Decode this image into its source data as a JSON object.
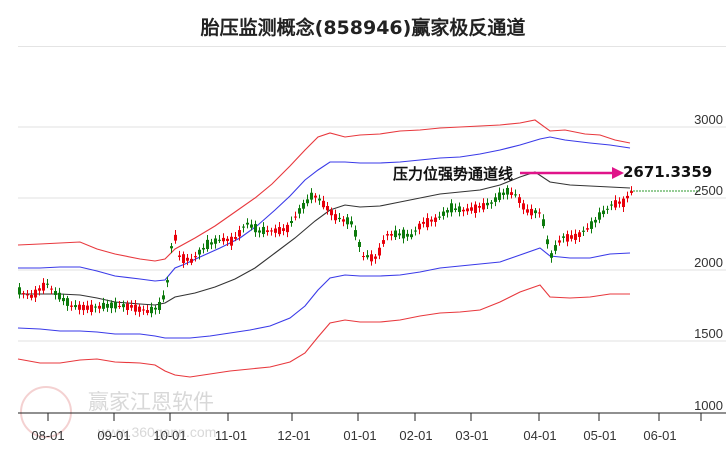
{
  "title": "胎压监测概念(858946)赢家极反通道",
  "annotation": {
    "label": "压力位强势通道线",
    "value": "2671.3359"
  },
  "watermark": {
    "brand": "赢家江恩软件",
    "url": "www.360gann.com"
  },
  "colors": {
    "up": "#e8000b",
    "down": "#0c7a0c",
    "outer_band": "#e8383d",
    "inner_band": "#3535e8",
    "mid_line": "#333333",
    "arrow": "#e0148a",
    "grid": "#dddddd",
    "dotted_level": "#2e9a2e"
  },
  "chart_data": {
    "type": "candlestick",
    "title": "胎压监测概念(858946)赢家极反通道",
    "xlabel": "",
    "ylabel": "",
    "x_ticks": [
      "08-01",
      "09-01",
      "10-01",
      "11-01",
      "12-01",
      "01-01",
      "02-01",
      "03-01",
      "04-01",
      "05-01",
      "06-01"
    ],
    "y_ticks": [
      1000,
      1500,
      2000,
      2500,
      3000
    ],
    "ylim": [
      1000,
      3000
    ],
    "grid": "horizontal",
    "annotations": [
      {
        "text": "压力位强势通道线",
        "value": 2671.3359,
        "type": "arrow"
      }
    ],
    "series": [
      {
        "name": "outer_upper",
        "color": "#e8383d",
        "approx_values": [
          2330,
          2340,
          2330,
          2250,
          2170,
          2180,
          2400,
          2560,
          2700,
          2820,
          2900,
          2850,
          2870,
          2950,
          3000,
          2990,
          2890
        ]
      },
      {
        "name": "inner_upper",
        "color": "#3535e8",
        "approx_values": [
          2040,
          2030,
          2000,
          1890,
          1880,
          2030,
          2200,
          2400,
          2580,
          2570,
          2580,
          2630,
          2700,
          2730,
          2680,
          2660
        ]
      },
      {
        "name": "middle",
        "color": "#333333",
        "approx_values": [
          1800,
          1800,
          1790,
          1740,
          1720,
          1780,
          1970,
          2120,
          2280,
          2320,
          2320,
          2360,
          2410,
          2460,
          2440,
          2420
        ]
      },
      {
        "name": "inner_lower",
        "color": "#3535e8",
        "approx_values": [
          1600,
          1590,
          1580,
          1530,
          1500,
          1560,
          1740,
          1890,
          1960,
          1950,
          1990,
          2000,
          2060,
          2140,
          2080,
          2100
        ]
      },
      {
        "name": "outer_lower",
        "color": "#e8383d",
        "approx_values": [
          1300,
          1280,
          1300,
          1270,
          1220,
          1250,
          1440,
          1650,
          1690,
          1680,
          1690,
          1720,
          1820,
          1740,
          1760,
          1810
        ]
      },
      {
        "name": "close",
        "approx_values": [
          1800,
          1760,
          1900,
          1700,
          1650,
          1700,
          1760,
          2100,
          2280,
          2470,
          2320,
          2000,
          2270,
          2500,
          2570,
          2430,
          2050,
          2200,
          2360,
          2540
        ]
      }
    ]
  }
}
